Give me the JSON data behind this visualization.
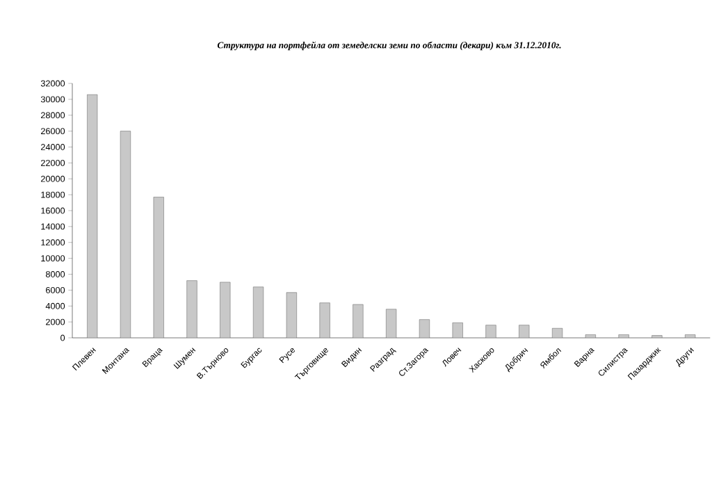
{
  "chart_data": {
    "type": "bar",
    "title": "*Структура на портфейла от земеделски земи по области  (декари) към 31.12.2010г.*",
    "categories": [
      "Плевен",
      "Монтана",
      "Враца",
      "Шумен",
      "В.Търново",
      "Бургас",
      "Русе",
      "Търговище",
      "Видин",
      "Разград",
      "Ст.Загора",
      "Ловеч",
      "Хасково",
      "Добрич",
      "Ямбол",
      "Варна",
      "Силистра",
      "Пазарджик",
      "Други"
    ],
    "values": [
      30600,
      26000,
      17700,
      7200,
      7000,
      6400,
      5700,
      4400,
      4200,
      3600,
      2300,
      1900,
      1600,
      1600,
      1200,
      400,
      400,
      300,
      400
    ],
    "color": "#c8c8c8",
    "ylim": [
      0,
      32000
    ],
    "yticks": [
      0,
      2000,
      4000,
      6000,
      8000,
      10000,
      12000,
      14000,
      16000,
      18000,
      20000,
      22000,
      24000,
      26000,
      28000,
      30000,
      32000
    ],
    "grid": false
  }
}
